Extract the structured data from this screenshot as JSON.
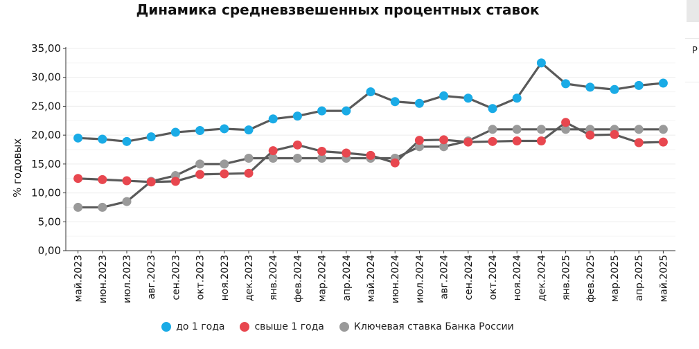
{
  "chart_data": {
    "type": "line",
    "title": "Динамика средневзвешенных процентных ставок",
    "xlabel": "",
    "ylabel": "% годовых",
    "ylim": [
      0,
      35
    ],
    "ytick_labels": [
      "0,00",
      "5,00",
      "10,00",
      "15,00",
      "20,00",
      "25,00",
      "30,00",
      "35,00"
    ],
    "categories": [
      "май.2023",
      "июн.2023",
      "июл.2023",
      "авг.2023",
      "сен.2023",
      "окт.2023",
      "ноя.2023",
      "дек.2023",
      "янв.2024",
      "фев.2024",
      "мар.2024",
      "апр.2024",
      "май.2024",
      "июн.2024",
      "июл.2024",
      "авг.2024",
      "сен.2024",
      "окт.2024",
      "ноя.2024",
      "дек.2024",
      "янв.2025",
      "фев.2025",
      "мар.2025",
      "апр.2025",
      "май.2025"
    ],
    "series": [
      {
        "name": "до 1 года",
        "color": "#1aabe6",
        "values": [
          19.5,
          19.3,
          18.9,
          19.7,
          20.5,
          20.8,
          21.1,
          20.9,
          22.8,
          23.3,
          24.2,
          24.2,
          27.5,
          25.8,
          25.5,
          26.8,
          26.4,
          24.6,
          26.4,
          32.5,
          28.9,
          28.3,
          27.9,
          28.6,
          29.0
        ]
      },
      {
        "name": "свыше 1 года",
        "color": "#e8474f",
        "values": [
          12.5,
          12.3,
          12.1,
          11.9,
          12.0,
          13.2,
          13.3,
          13.4,
          17.3,
          18.3,
          17.2,
          16.9,
          16.5,
          15.2,
          19.1,
          19.2,
          18.8,
          18.9,
          19.0,
          19.0,
          22.2,
          20.0,
          20.1,
          18.7,
          18.8
        ]
      },
      {
        "name": "Ключевая ставка Банка России",
        "color": "#9a9a9a",
        "values": [
          7.5,
          7.5,
          8.5,
          12.0,
          13.0,
          15.0,
          15.0,
          16.0,
          16.0,
          16.0,
          16.0,
          16.0,
          16.0,
          16.0,
          18.0,
          18.0,
          19.0,
          21.0,
          21.0,
          21.0,
          21.0,
          21.0,
          21.0,
          21.0,
          21.0
        ]
      }
    ],
    "legend_position": "bottom"
  },
  "side_label": "Р"
}
